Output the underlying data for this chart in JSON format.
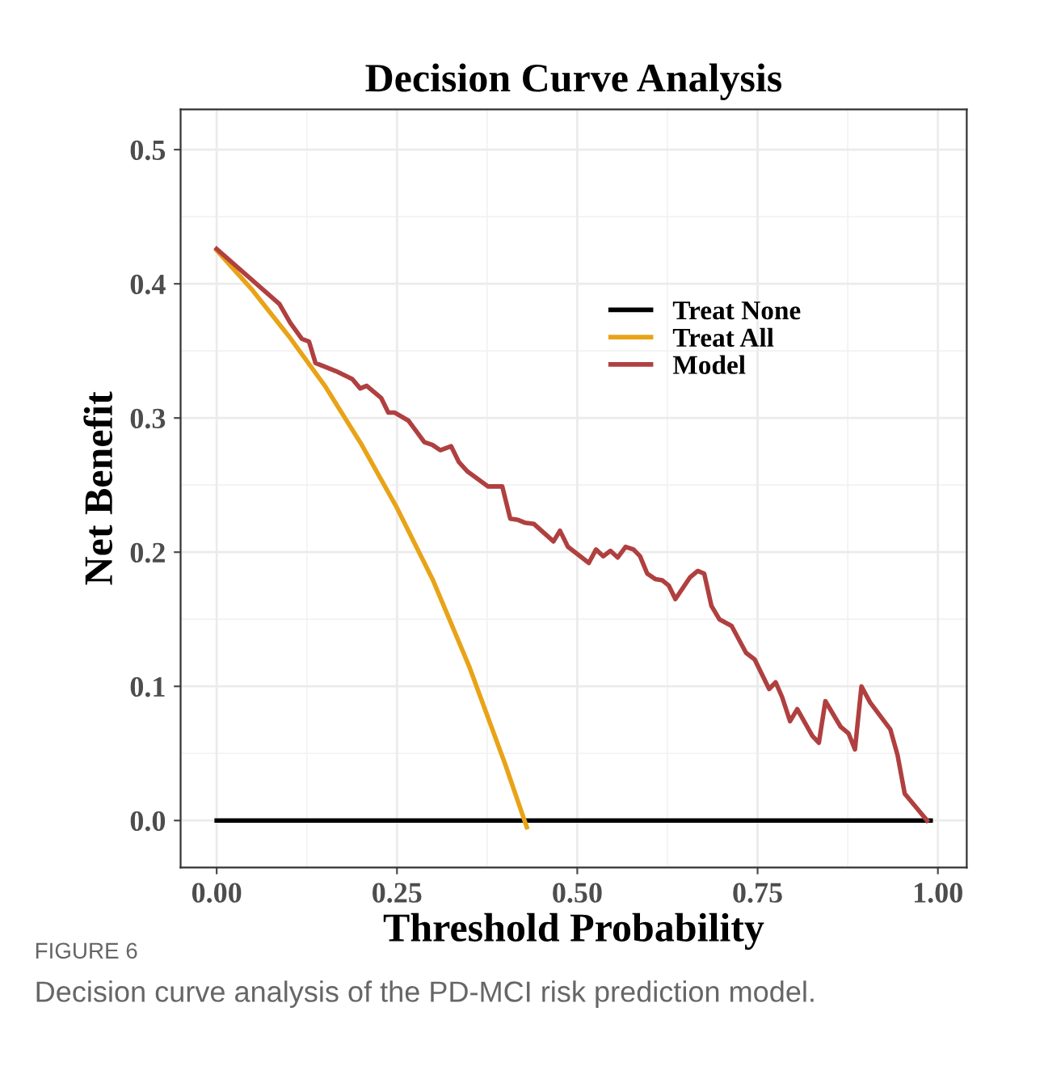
{
  "chart_data": {
    "type": "line",
    "title": "Decision Curve Analysis",
    "xlabel": "Threshold Probability",
    "ylabel": "Net Benefit",
    "annotations": [
      "FIGURE 6",
      "Decision curve analysis of the PD-MCI risk prediction model."
    ],
    "xlim": [
      -0.05,
      1.04
    ],
    "ylim": [
      -0.035,
      0.53
    ],
    "xticks": [
      {
        "value": 0,
        "label": "0.00"
      },
      0.25,
      {
        "value": 0.5,
        "label": "0.50"
      },
      0.75,
      {
        "value": 1,
        "label": "1.00"
      }
    ],
    "yticks": [
      {
        "value": 0,
        "label": "0.0"
      },
      0.1,
      0.2,
      0.3,
      0.4,
      0.5
    ],
    "grid": true,
    "legend": "top right",
    "marker": "none",
    "line_style": "solid",
    "series": [
      {
        "name": "Treat None",
        "color": "#000000",
        "x": [
          0,
          0.99
        ],
        "values": [
          0,
          0
        ]
      },
      {
        "name": "Treat All",
        "color": "#e8a317",
        "x": [
          0,
          0.05,
          0.1,
          0.15,
          0.2,
          0.25,
          0.3,
          0.35,
          0.4,
          0.43
        ],
        "values": [
          0.425,
          0.395,
          0.361,
          0.324,
          0.281,
          0.233,
          0.179,
          0.115,
          0.042,
          -0.005
        ]
      },
      {
        "name": "Model",
        "color": "#b04040",
        "x": [
          0,
          0.087,
          0.102,
          0.118,
          0.128,
          0.137,
          0.165,
          0.188,
          0.199,
          0.208,
          0.228,
          0.238,
          0.247,
          0.266,
          0.288,
          0.299,
          0.31,
          0.325,
          0.336,
          0.348,
          0.376,
          0.396,
          0.407,
          0.418,
          0.427,
          0.44,
          0.467,
          0.476,
          0.487,
          0.516,
          0.526,
          0.536,
          0.546,
          0.556,
          0.567,
          0.578,
          0.587,
          0.597,
          0.608,
          0.618,
          0.627,
          0.636,
          0.656,
          0.667,
          0.676,
          0.686,
          0.697,
          0.714,
          0.734,
          0.746,
          0.766,
          0.775,
          0.784,
          0.795,
          0.805,
          0.826,
          0.835,
          0.844,
          0.865,
          0.876,
          0.885,
          0.894,
          0.906,
          0.934,
          0.944,
          0.954,
          0.985
        ],
        "values": [
          0.426,
          0.385,
          0.371,
          0.359,
          0.357,
          0.341,
          0.335,
          0.329,
          0.322,
          0.324,
          0.315,
          0.304,
          0.304,
          0.298,
          0.282,
          0.28,
          0.276,
          0.279,
          0.267,
          0.26,
          0.249,
          0.249,
          0.225,
          0.224,
          0.222,
          0.221,
          0.208,
          0.216,
          0.204,
          0.192,
          0.202,
          0.197,
          0.201,
          0.196,
          0.204,
          0.202,
          0.197,
          0.184,
          0.18,
          0.179,
          0.175,
          0.165,
          0.181,
          0.186,
          0.184,
          0.16,
          0.15,
          0.145,
          0.125,
          0.12,
          0.098,
          0.103,
          0.092,
          0.074,
          0.083,
          0.063,
          0.058,
          0.089,
          0.07,
          0.065,
          0.053,
          0.1,
          0.088,
          0.068,
          0.049,
          0.02,
          0
        ]
      }
    ]
  }
}
